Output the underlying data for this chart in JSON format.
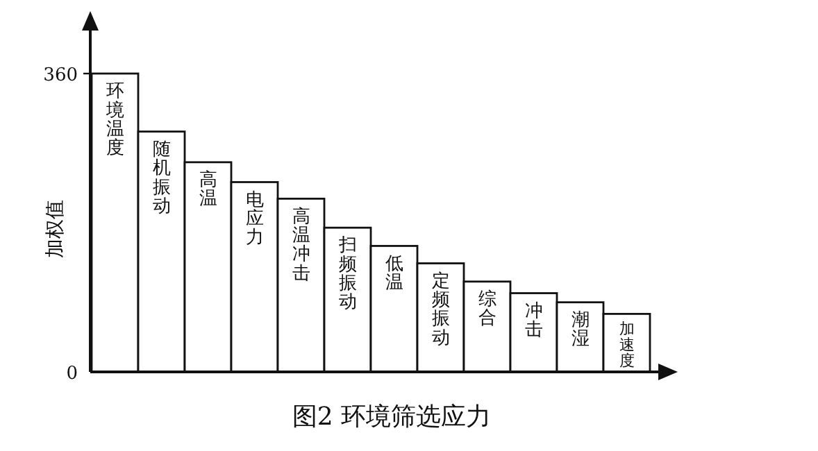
{
  "chart_data": {
    "type": "bar",
    "title": "图2 环境筛选应力",
    "ylabel": "加权值",
    "categories": [
      "环境温度",
      "随机振动",
      "高温",
      "电应力",
      "高温冲击",
      "扫频振动",
      "低温",
      "定频振动",
      "综合",
      "冲击",
      "潮湿",
      "加速度"
    ],
    "values": [
      360,
      290,
      253,
      229,
      209,
      174,
      152,
      131,
      109,
      95,
      84,
      70
    ],
    "color": "#ffffff",
    "ylim": [
      0,
      360
    ],
    "yticks": [
      0,
      360
    ]
  }
}
